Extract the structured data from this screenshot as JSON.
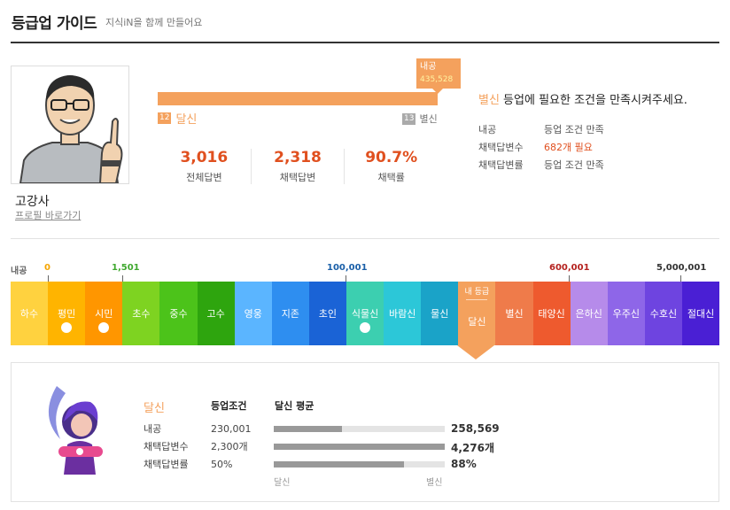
{
  "header": {
    "title": "등급업 가이드",
    "subtitle": "지식iN을 함께 만들어요"
  },
  "profile": {
    "name": "고강사",
    "link_label": "프로필 바로가기"
  },
  "progress": {
    "tooltip_label": "내공",
    "tooltip_value": "435,528",
    "fill_fraction": 1.0,
    "current_level_num": "12",
    "current_level_name": "달신",
    "next_level_num": "13",
    "next_level_name": "별신"
  },
  "stats": [
    {
      "value": "3,016",
      "label": "전체답변"
    },
    {
      "value": "2,318",
      "label": "채택답변"
    },
    {
      "value": "90.7%",
      "label": "채택률"
    }
  ],
  "next_grade": {
    "name": "별신",
    "message": " 등업에 필요한 조건을 만족시켜주세요.",
    "conditions": [
      {
        "label": "내공",
        "status": "등업 조건 만족"
      },
      {
        "label": "채택답변수",
        "status": "682개 필요"
      },
      {
        "label": "채택답변률",
        "status": "등업 조건 만족"
      }
    ]
  },
  "thresholds": [
    {
      "label": "내공",
      "color": "#666666"
    },
    {
      "label": "0",
      "color": "#f5a500"
    },
    {
      "label": "1,501",
      "color": "#3fa82e"
    },
    {
      "label": "100,001",
      "color": "#1a5fa8"
    },
    {
      "label": "600,001",
      "color": "#b5221f"
    },
    {
      "label": "5,000,001",
      "color": "#333333"
    }
  ],
  "grades": [
    {
      "name": "하수",
      "color": "#ffd23f",
      "badge": false
    },
    {
      "name": "평민",
      "color": "#ffb400",
      "badge": true
    },
    {
      "name": "시민",
      "color": "#ff9600",
      "badge": true
    },
    {
      "name": "초수",
      "color": "#7ed321",
      "badge": false
    },
    {
      "name": "중수",
      "color": "#4cc31a",
      "badge": false
    },
    {
      "name": "고수",
      "color": "#2ea50e",
      "badge": false
    },
    {
      "name": "영웅",
      "color": "#5bb5ff",
      "badge": false
    },
    {
      "name": "지존",
      "color": "#2e8ef0",
      "badge": false
    },
    {
      "name": "초인",
      "color": "#1a63d6",
      "badge": false
    },
    {
      "name": "식물신",
      "color": "#3ccfb0",
      "badge": true
    },
    {
      "name": "바람신",
      "color": "#2cc7d8",
      "badge": false
    },
    {
      "name": "물신",
      "color": "#1aa3c8",
      "badge": false
    },
    {
      "name": "달신",
      "color": "#f4a15d",
      "badge": false,
      "current": true,
      "tag": "내 등급"
    },
    {
      "name": "별신",
      "color": "#ef7b4a",
      "badge": false
    },
    {
      "name": "태양신",
      "color": "#ee5a2e",
      "badge": false
    },
    {
      "name": "은하신",
      "color": "#b68bea",
      "badge": false
    },
    {
      "name": "우주신",
      "color": "#8e66e8",
      "badge": false
    },
    {
      "name": "수호신",
      "color": "#6e44e0",
      "badge": false
    },
    {
      "name": "절대신",
      "color": "#4a1fd4",
      "badge": false
    }
  ],
  "grade_info": {
    "title": "달신",
    "col_condition": "등업조건",
    "col_average": "달신 평균",
    "rows": [
      {
        "label": "내공",
        "condition": "230,001",
        "average": "258,569",
        "fraction": 0.4
      },
      {
        "label": "채택답변수",
        "condition": "2,300개",
        "average": "4,276개",
        "fraction": 1.0
      },
      {
        "label": "채택답변률",
        "condition": "50%",
        "average": "88%",
        "fraction": 0.76
      }
    ],
    "axis_left": "달신",
    "axis_right": "별신"
  }
}
